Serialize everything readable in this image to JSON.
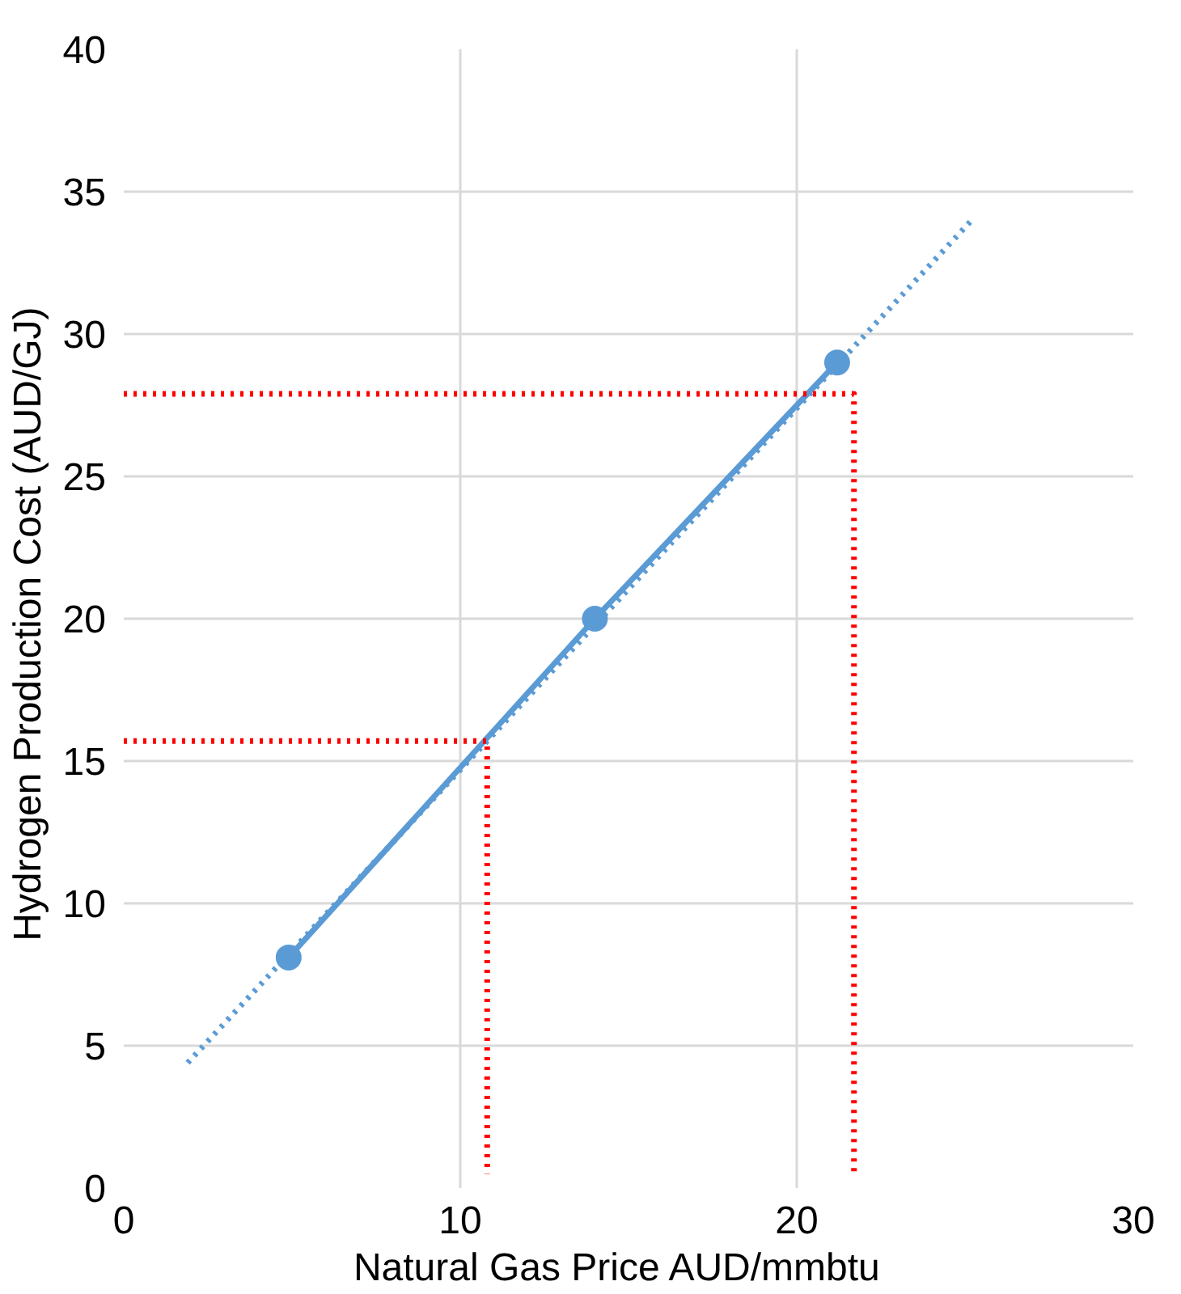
{
  "chart_data": {
    "type": "line",
    "xlabel": "Natural Gas Price   AUD/mmbtu",
    "ylabel": "Hydrogen Production Cost  (AUD/GJ)",
    "xlim": [
      0,
      30
    ],
    "xticks": [
      0,
      10,
      20,
      30
    ],
    "ylim": [
      0,
      40
    ],
    "yticks": [
      0,
      5,
      10,
      15,
      20,
      25,
      30,
      35,
      40
    ],
    "grid": true,
    "series": [
      {
        "color": "#5b9bd5",
        "x": [
          1.9,
          25.2
        ],
        "values": [
          4.4,
          34
        ],
        "marker": "none",
        "line_style": "dotted"
      },
      {
        "color": "#5b9bd5",
        "x": [
          4.9,
          14,
          21.2
        ],
        "values": [
          8.1,
          20,
          29
        ],
        "marker": "circle",
        "line_style": "solid"
      },
      {
        "color": "#ff0000",
        "x": [
          0,
          10.8,
          10.8
        ],
        "values": [
          15.7,
          15.7,
          0.5
        ],
        "marker": "none",
        "line_style": "dotted"
      },
      {
        "color": "#ff0000",
        "x": [
          0,
          21.7,
          21.7
        ],
        "values": [
          27.9,
          27.9,
          0.5
        ],
        "marker": "none",
        "line_style": "dotted"
      }
    ]
  }
}
